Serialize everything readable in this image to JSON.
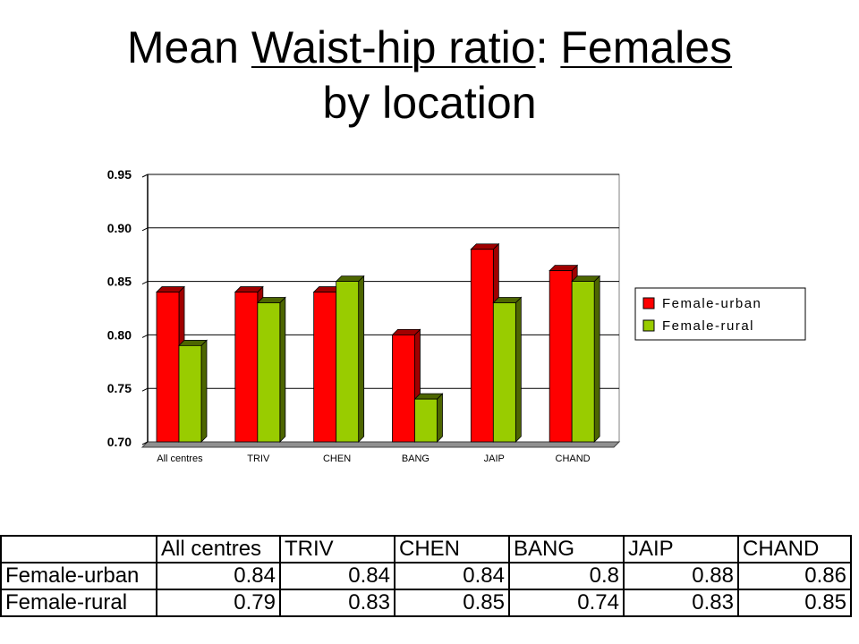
{
  "title": {
    "part1": "Mean ",
    "part2": "Waist-hip ratio",
    "part3": ": ",
    "part4": "Females",
    "part5": "by location"
  },
  "chart_data": {
    "type": "bar",
    "categories": [
      "All centres",
      "TRIV",
      "CHEN",
      "BANG",
      "JAIP",
      "CHAND"
    ],
    "series": [
      {
        "name": "Female-urban",
        "values": [
          0.84,
          0.84,
          0.84,
          0.8,
          0.88,
          0.86
        ],
        "color": "#ff0000",
        "side_color": "#a00000"
      },
      {
        "name": "Female-rural",
        "values": [
          0.79,
          0.83,
          0.85,
          0.74,
          0.83,
          0.85
        ],
        "color": "#99cc00",
        "side_color": "#4d6600"
      }
    ],
    "yticks": [
      "0.70",
      "0.75",
      "0.80",
      "0.85",
      "0.90",
      "0.95"
    ],
    "ylim": [
      0.7,
      0.95
    ],
    "grid": true,
    "legend": "right"
  },
  "table": {
    "header": [
      "",
      "All centres",
      "TRIV",
      "CHEN",
      "BANG",
      "JAIP",
      "CHAND"
    ],
    "rows": [
      {
        "label": "Female-urban",
        "values": [
          "0.84",
          "0.84",
          "0.84",
          "0.8",
          "0.88",
          "0.86"
        ]
      },
      {
        "label": "Female-rural",
        "values": [
          "0.79",
          "0.83",
          "0.85",
          "0.74",
          "0.83",
          "0.85"
        ]
      }
    ]
  }
}
